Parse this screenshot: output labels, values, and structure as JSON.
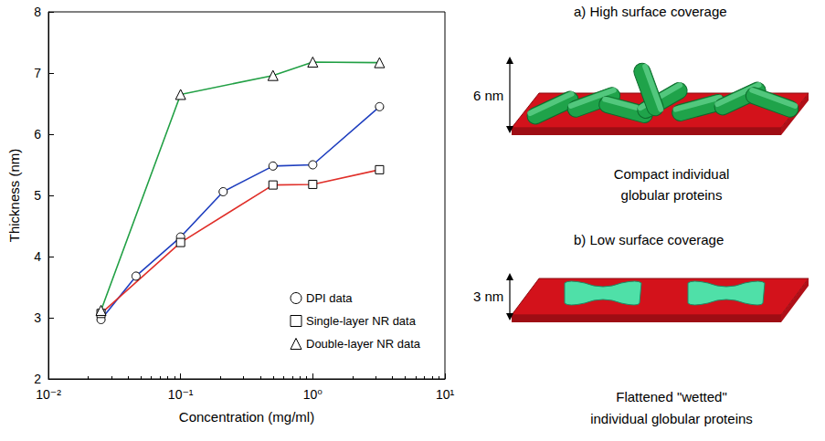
{
  "chart_data": {
    "type": "line",
    "x_label": "Concentration (mg/ml)",
    "y_label": "Thickness (nm)",
    "log": "x",
    "grid": false,
    "legend": "lower right",
    "xlim": [
      0.01,
      10
    ],
    "xticks": [
      {
        "value": 0.01,
        "label": "10⁻²"
      },
      {
        "value": 0.1,
        "label": "10⁻¹"
      },
      {
        "value": 1,
        "label": "10⁰"
      },
      {
        "value": 10,
        "label": "10¹"
      }
    ],
    "ylim": [
      2,
      8
    ],
    "yticks": [
      2,
      3,
      4,
      5,
      6,
      7,
      8
    ],
    "series": [
      {
        "name": "DPI data",
        "color": "#1f3fbf",
        "marker": "circle",
        "line_style": "solid",
        "x": [
          0.025,
          0.046,
          0.1,
          0.21,
          0.5,
          1.0,
          3.2
        ],
        "values": [
          2.97,
          3.68,
          4.32,
          5.06,
          5.48,
          5.5,
          6.45
        ]
      },
      {
        "name": "Single-layer NR data",
        "color": "#e0302a",
        "marker": "square",
        "line_style": "solid",
        "x": [
          0.025,
          0.1,
          0.5,
          1.0,
          3.2
        ],
        "values": [
          3.07,
          4.23,
          5.17,
          5.18,
          5.42
        ]
      },
      {
        "name": "Double-layer NR data",
        "color": "#22a045",
        "marker": "triangle",
        "line_style": "solid",
        "x": [
          0.025,
          0.1,
          0.5,
          1.0,
          3.2
        ],
        "values": [
          3.12,
          6.65,
          6.96,
          7.18,
          7.17
        ]
      }
    ]
  },
  "diagram": {
    "panels": [
      {
        "title": "a) High surface coverage",
        "height_label": "6 nm",
        "caption": [
          "Compact individual",
          "globular proteins"
        ]
      },
      {
        "title": "b) Low surface coverage",
        "height_label": "3 nm",
        "caption": [
          "Flattened \"wetted\"",
          "individual globular proteins"
        ]
      }
    ]
  }
}
